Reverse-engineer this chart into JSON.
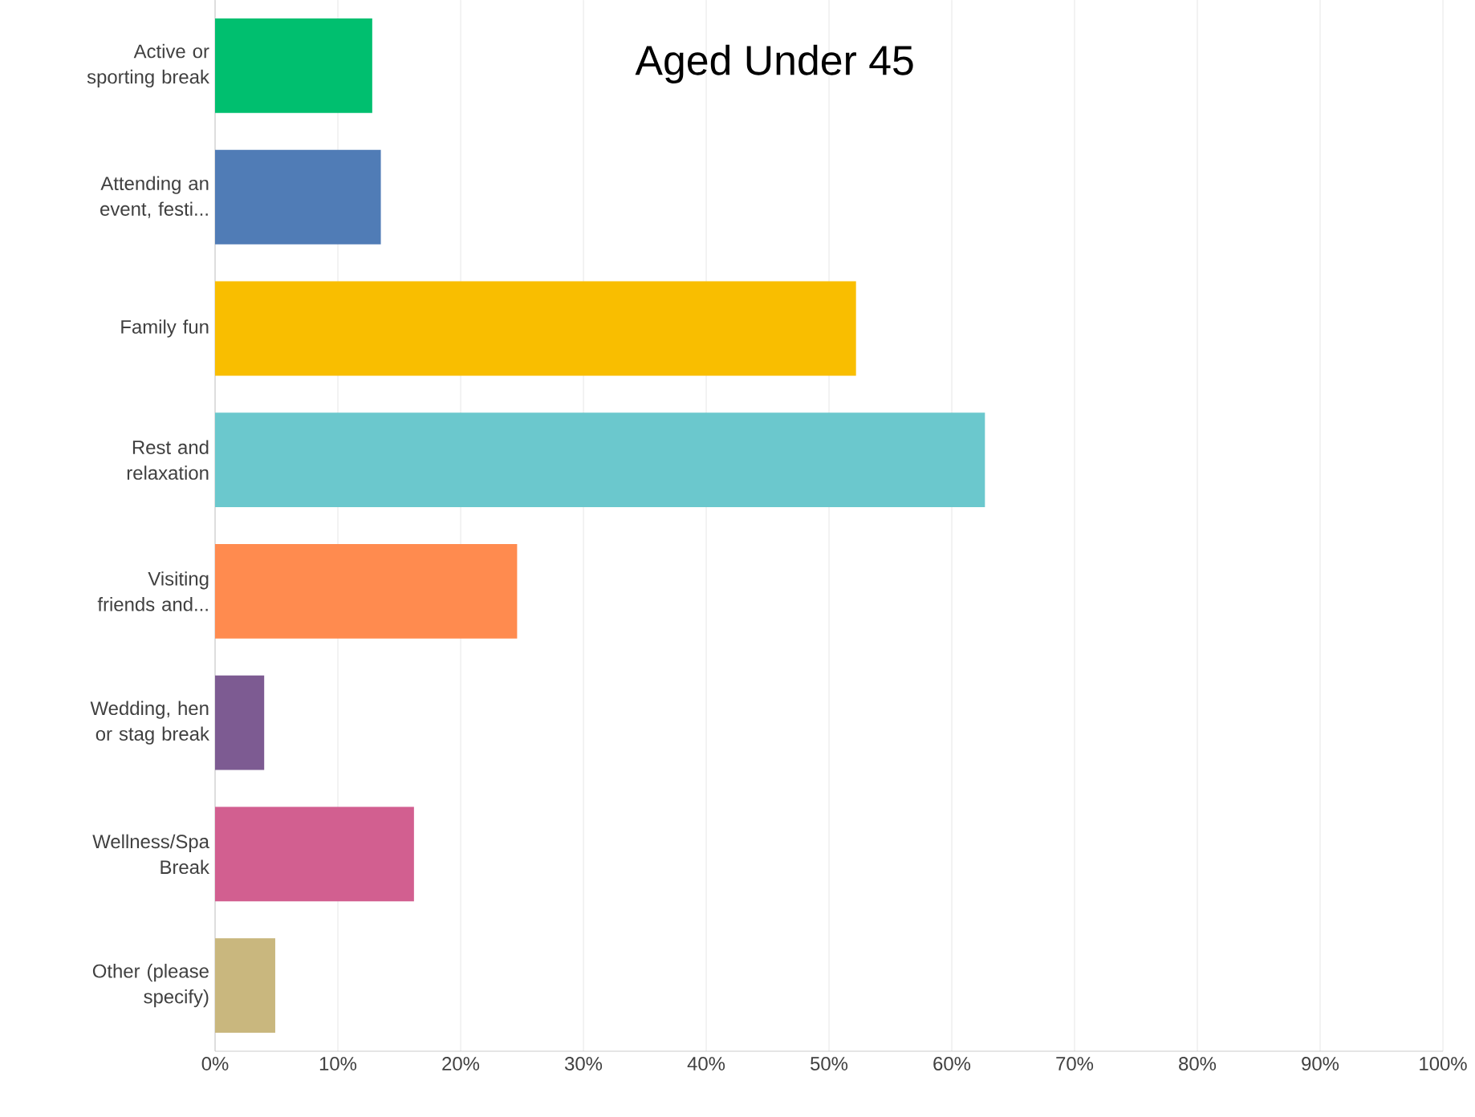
{
  "chart_data": {
    "type": "bar",
    "orientation": "horizontal",
    "title": "Aged Under 45",
    "categories": [
      "Active or sporting break",
      "Attending an event, festi...",
      "Family fun",
      "Rest and relaxation",
      "Visiting friends and...",
      "Wedding, hen or stag break",
      "Wellness/Spa Break",
      "Other (please specify)"
    ],
    "values": [
      12.8,
      13.5,
      52.2,
      62.7,
      24.6,
      4.0,
      16.2,
      4.9
    ],
    "colors": [
      "#00bf6f",
      "#507cb6",
      "#f9be00",
      "#6bc8cd",
      "#ff8b4f",
      "#7d5b92",
      "#d25f90",
      "#c9b77e"
    ],
    "xlim": [
      0,
      100
    ],
    "xticks": [
      {
        "value": 0,
        "label": "0%"
      },
      {
        "value": 10,
        "label": "10%"
      },
      {
        "value": 20,
        "label": "20%"
      },
      {
        "value": 30,
        "label": "30%"
      },
      {
        "value": 40,
        "label": "40%"
      },
      {
        "value": 50,
        "label": "50%"
      },
      {
        "value": 60,
        "label": "60%"
      },
      {
        "value": 70,
        "label": "70%"
      },
      {
        "value": 80,
        "label": "80%"
      },
      {
        "value": 90,
        "label": "90%"
      },
      {
        "value": 100,
        "label": "100%"
      }
    ],
    "grid": "x"
  }
}
